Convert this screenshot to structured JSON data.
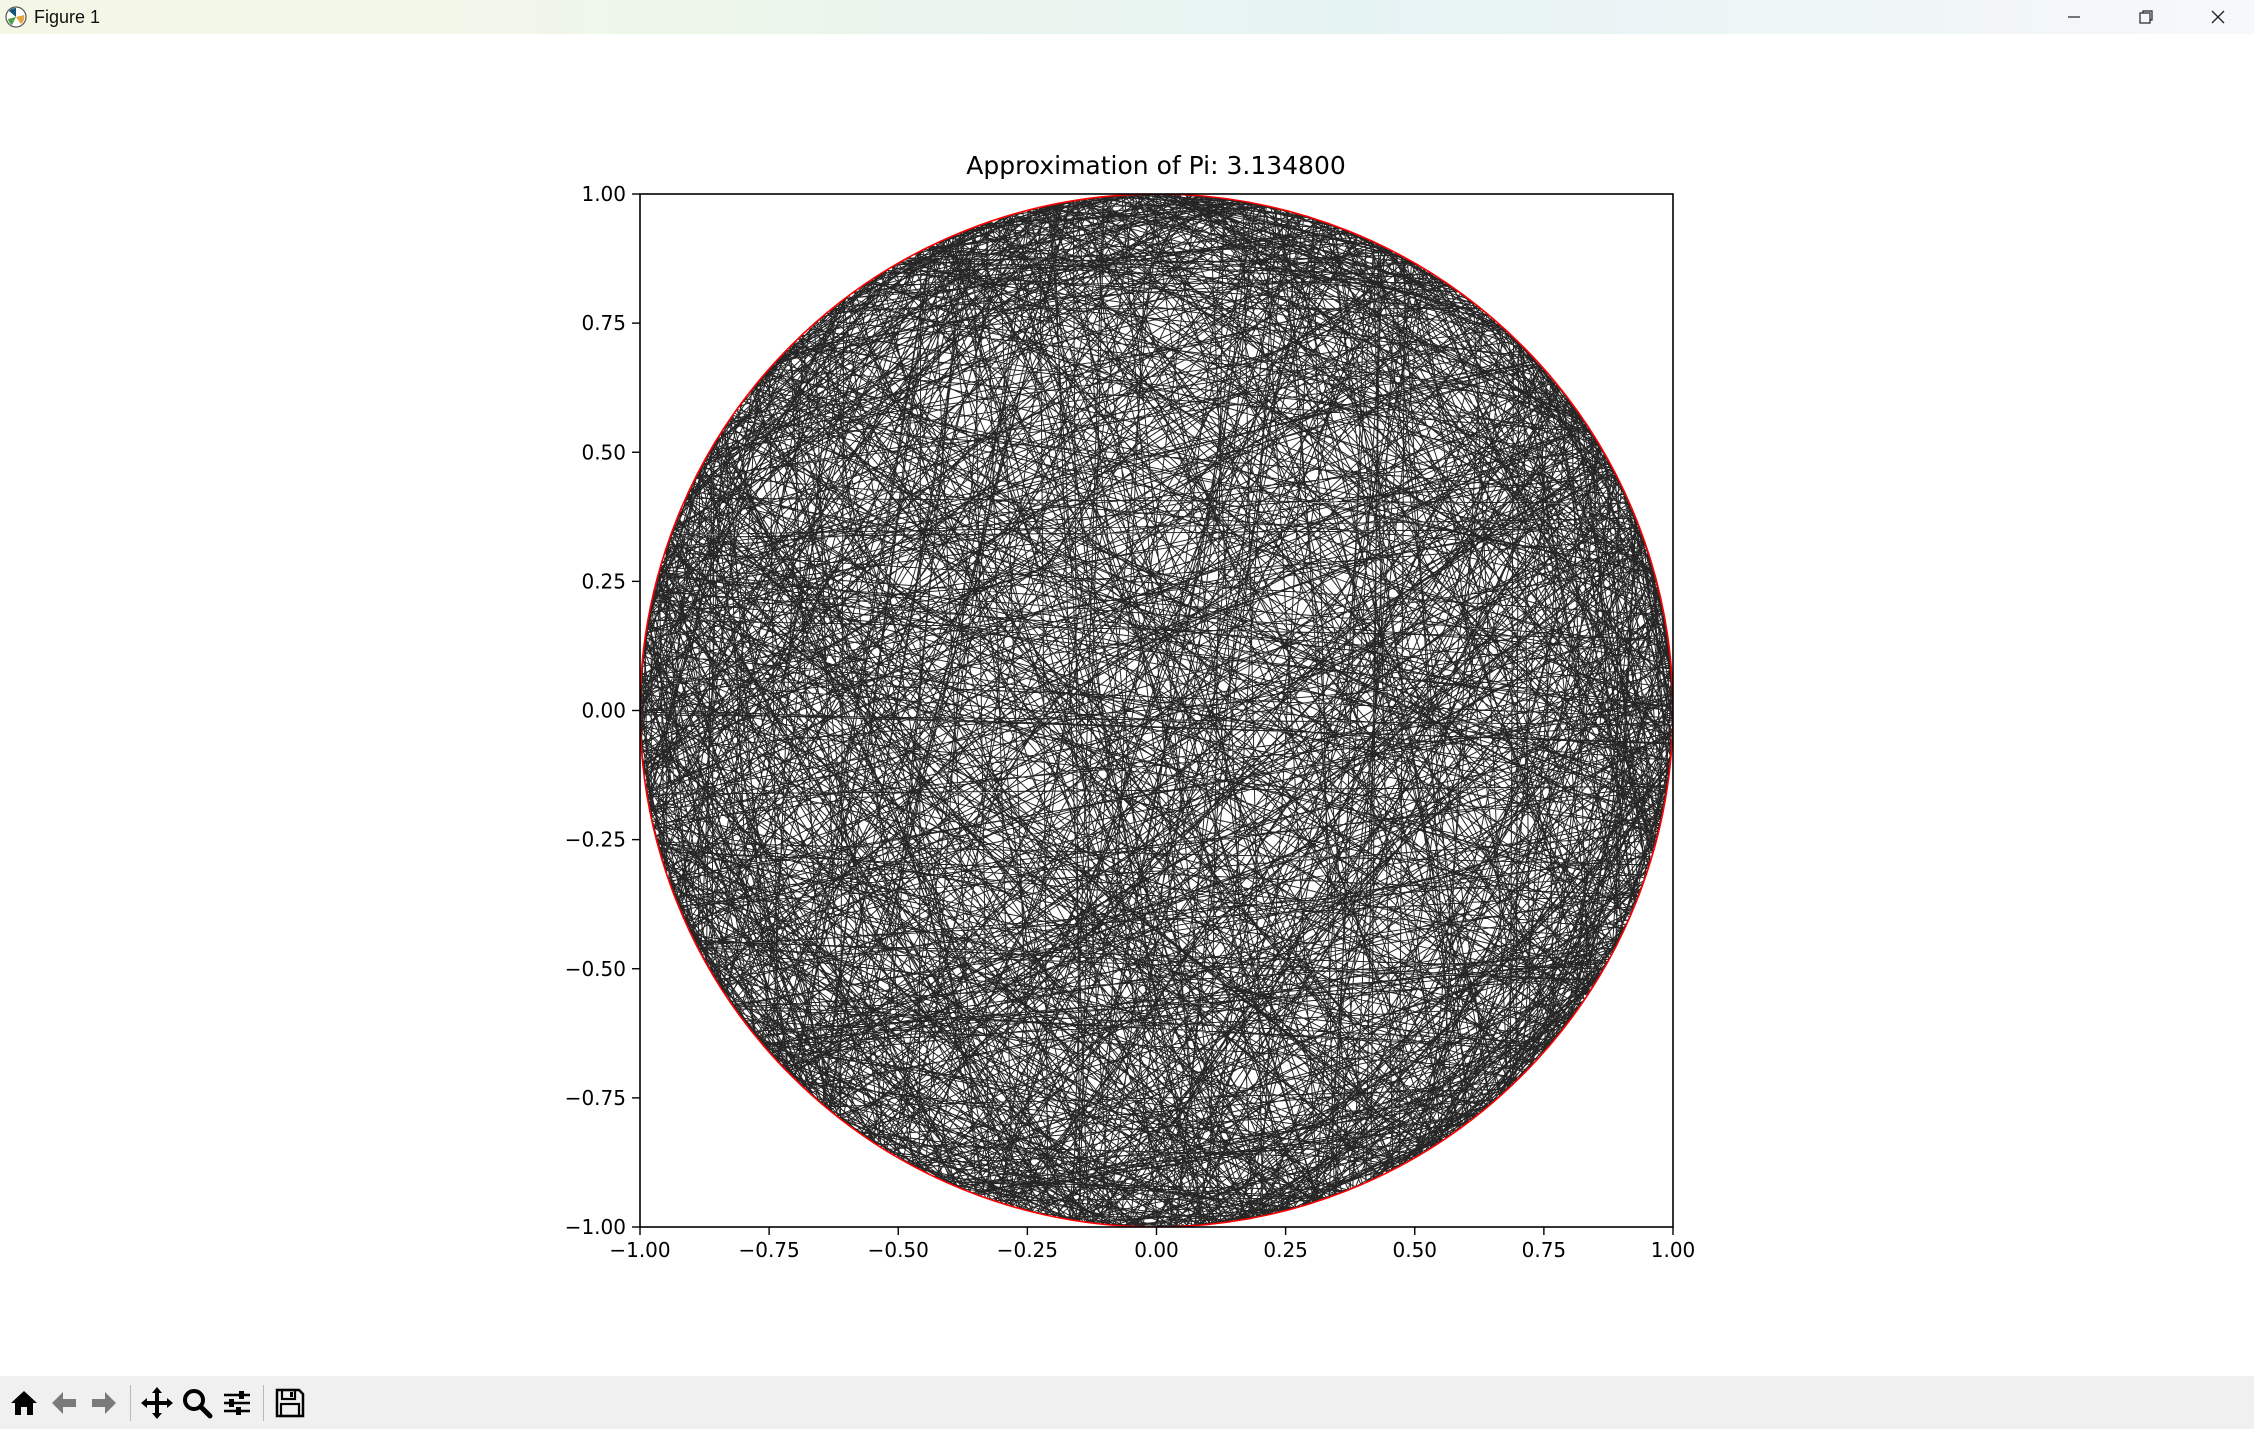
{
  "window": {
    "title": "Figure 1"
  },
  "toolbar": {
    "buttons": [
      {
        "name": "home",
        "icon": "home-icon"
      },
      {
        "name": "back",
        "icon": "arrow-left-icon"
      },
      {
        "name": "forward",
        "icon": "arrow-right-icon"
      },
      {
        "name": "pan",
        "icon": "move-icon"
      },
      {
        "name": "zoom",
        "icon": "magnifier-icon"
      },
      {
        "name": "configure-subplots",
        "icon": "sliders-icon"
      },
      {
        "name": "save",
        "icon": "floppy-disk-icon"
      }
    ]
  },
  "chart_data": {
    "type": "line",
    "title": "Approximation of Pi: 3.134800",
    "xlabel": "",
    "ylabel": "",
    "xlim": [
      -1.0,
      1.0
    ],
    "ylim": [
      -1.0,
      1.0
    ],
    "xticks": [
      "−1.00",
      "−0.75",
      "−0.50",
      "−0.25",
      "0.00",
      "0.25",
      "0.50",
      "0.75",
      "1.00"
    ],
    "yticks": [
      "−1.00",
      "−0.75",
      "−0.50",
      "−0.25",
      "0.00",
      "0.25",
      "0.50",
      "0.75",
      "1.00"
    ],
    "xtick_values": [
      -1.0,
      -0.75,
      -0.5,
      -0.25,
      0.0,
      0.25,
      0.5,
      0.75,
      1.0
    ],
    "ytick_values": [
      -1.0,
      -0.75,
      -0.5,
      -0.25,
      0.0,
      0.25,
      0.5,
      0.75,
      1.0
    ],
    "grid": false,
    "series": [
      {
        "color": "#ff0000",
        "shape": "unit circle",
        "center": [
          0,
          0
        ],
        "radius": 1.0
      },
      {
        "color": "#000000",
        "shape": "random chords inside the unit circle"
      }
    ],
    "colors": {
      "circle": "#ff0000",
      "chords": "#000000"
    }
  }
}
